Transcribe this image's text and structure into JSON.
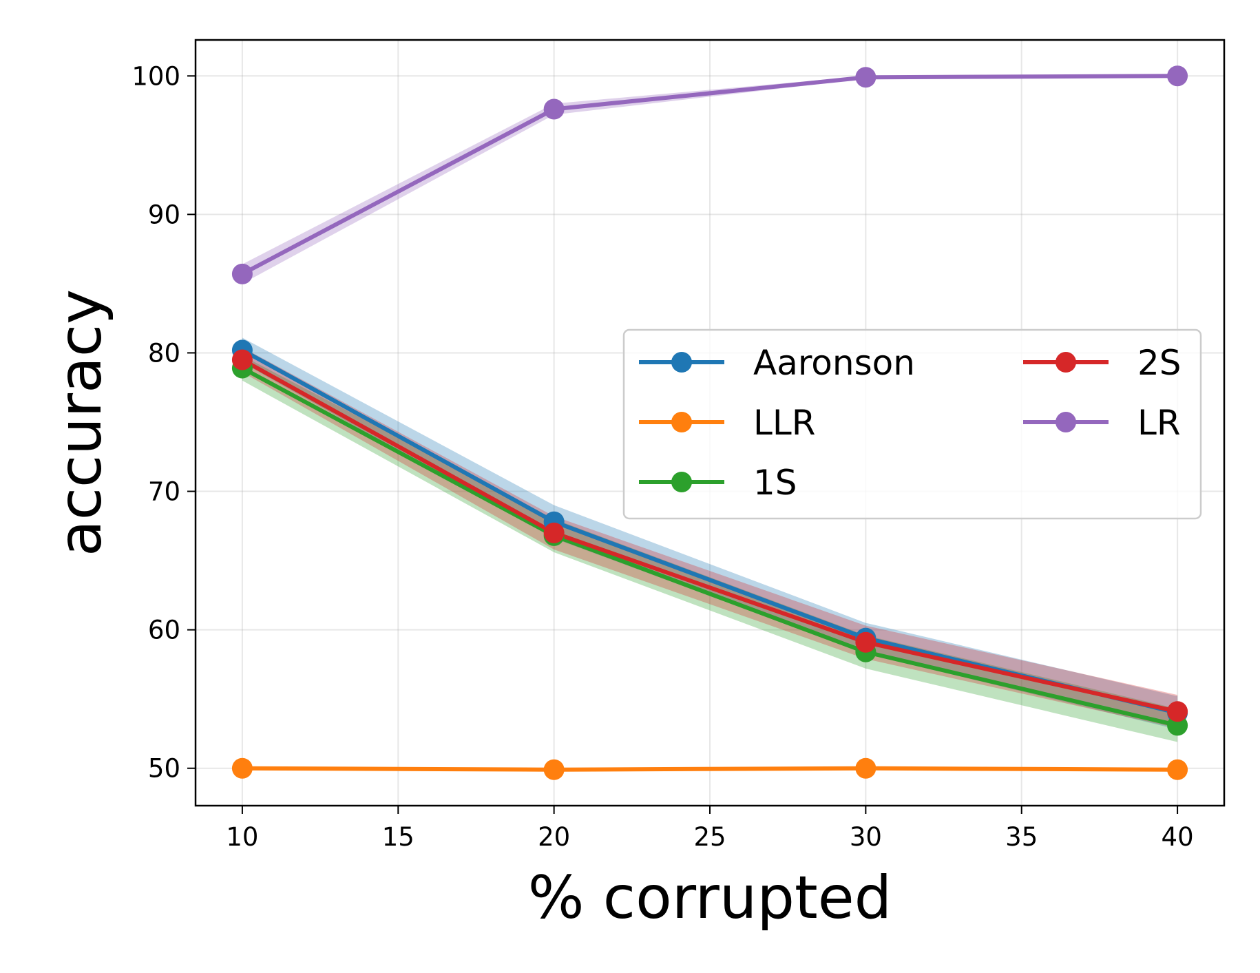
{
  "chart_data": {
    "type": "line",
    "xlabel": "% corrupted",
    "ylabel": "accuracy",
    "xlim": [
      8.5,
      41.5
    ],
    "ylim": [
      47.3,
      102.6
    ],
    "xticks": [
      10,
      15,
      20,
      25,
      30,
      35,
      40
    ],
    "yticks": [
      50,
      60,
      70,
      80,
      90,
      100
    ],
    "grid": true,
    "legend": {
      "position": "center-right",
      "columns": 2
    },
    "x": [
      10,
      20,
      30,
      40
    ],
    "series": [
      {
        "name": "Aaronson",
        "color": "#1f77b4",
        "values": [
          80.2,
          67.8,
          59.4,
          54.0
        ],
        "lower": [
          79.3,
          66.6,
          58.3,
          52.8
        ],
        "upper": [
          81.1,
          69.0,
          60.5,
          55.2
        ]
      },
      {
        "name": "LLR",
        "color": "#ff7f0e",
        "values": [
          50.0,
          49.9,
          50.0,
          49.9
        ],
        "lower": [
          49.9,
          49.8,
          49.9,
          49.8
        ],
        "upper": [
          50.1,
          50.0,
          50.1,
          50.0
        ]
      },
      {
        "name": "1S",
        "color": "#2ca02c",
        "values": [
          78.9,
          66.8,
          58.4,
          53.1
        ],
        "lower": [
          78.0,
          65.6,
          57.2,
          51.9
        ],
        "upper": [
          79.8,
          68.0,
          59.6,
          54.3
        ]
      },
      {
        "name": "2S",
        "color": "#d62728",
        "values": [
          79.5,
          67.0,
          59.1,
          54.1
        ],
        "lower": [
          78.6,
          65.8,
          57.9,
          52.9
        ],
        "upper": [
          80.4,
          68.2,
          60.3,
          55.3
        ]
      },
      {
        "name": "LR",
        "color": "#9467bd",
        "values": [
          85.7,
          97.6,
          99.9,
          100.0
        ],
        "lower": [
          85.0,
          97.2,
          99.8,
          99.9
        ],
        "upper": [
          86.4,
          98.0,
          100.0,
          100.0
        ]
      }
    ]
  }
}
